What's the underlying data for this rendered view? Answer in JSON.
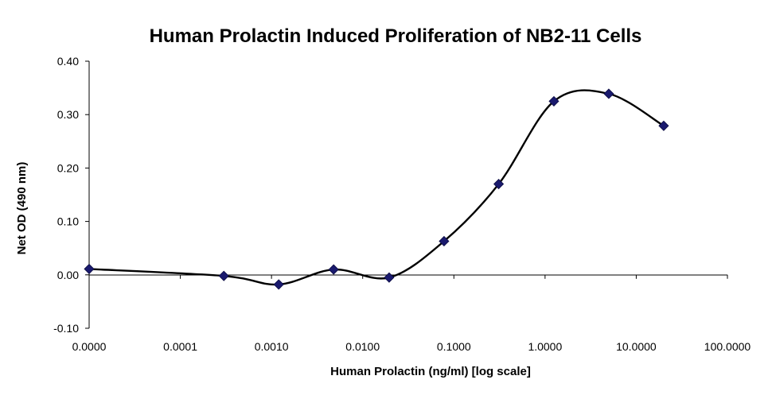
{
  "chart_data": {
    "type": "scatter",
    "title": "Human Prolactin Induced Proliferation of NB2-11 Cells",
    "xlabel": "Human Prolactin (ng/ml) [log scale]",
    "ylabel": "Net OD (490 nm)",
    "x_scale": "log",
    "xlim": [
      1e-05,
      100
    ],
    "ylim": [
      -0.1,
      0.4
    ],
    "x_tick_labels": [
      "0.0000",
      "0.0001",
      "0.0010",
      "0.0100",
      "0.1000",
      "1.0000",
      "10.0000",
      "100.0000"
    ],
    "y_ticks": [
      -0.1,
      0.0,
      0.1,
      0.2,
      0.3,
      0.4
    ],
    "y_tick_labels": [
      "-0.10",
      "0.00",
      "0.10",
      "0.20",
      "0.30",
      "0.40"
    ],
    "grid": false,
    "legend": "none",
    "series": [
      {
        "x": [
          1e-05,
          0.0003,
          0.0012,
          0.0048,
          0.0195,
          0.078,
          0.31,
          1.25,
          5.0,
          20.0
        ],
        "y": [
          0.011,
          -0.002,
          -0.018,
          0.01,
          -0.005,
          0.063,
          0.17,
          0.325,
          0.339,
          0.279
        ],
        "marker": "diamond",
        "marker_color": "#1a1a6e",
        "line": "smooth",
        "line_color": "#000000"
      }
    ]
  }
}
